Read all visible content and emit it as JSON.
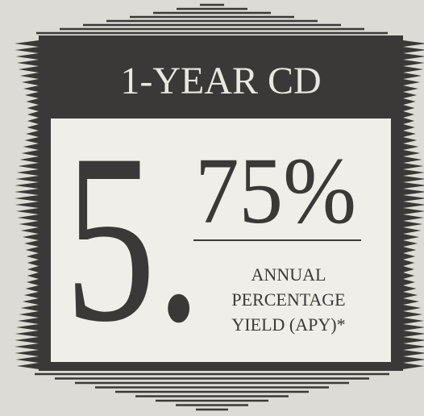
{
  "header": {
    "title": "1-YEAR CD"
  },
  "rate": {
    "whole": "5.",
    "fraction": "75%"
  },
  "caption": {
    "lines": [
      "ANNUAL",
      "PERCENTAGE",
      "YIELD (APY)*"
    ]
  }
}
